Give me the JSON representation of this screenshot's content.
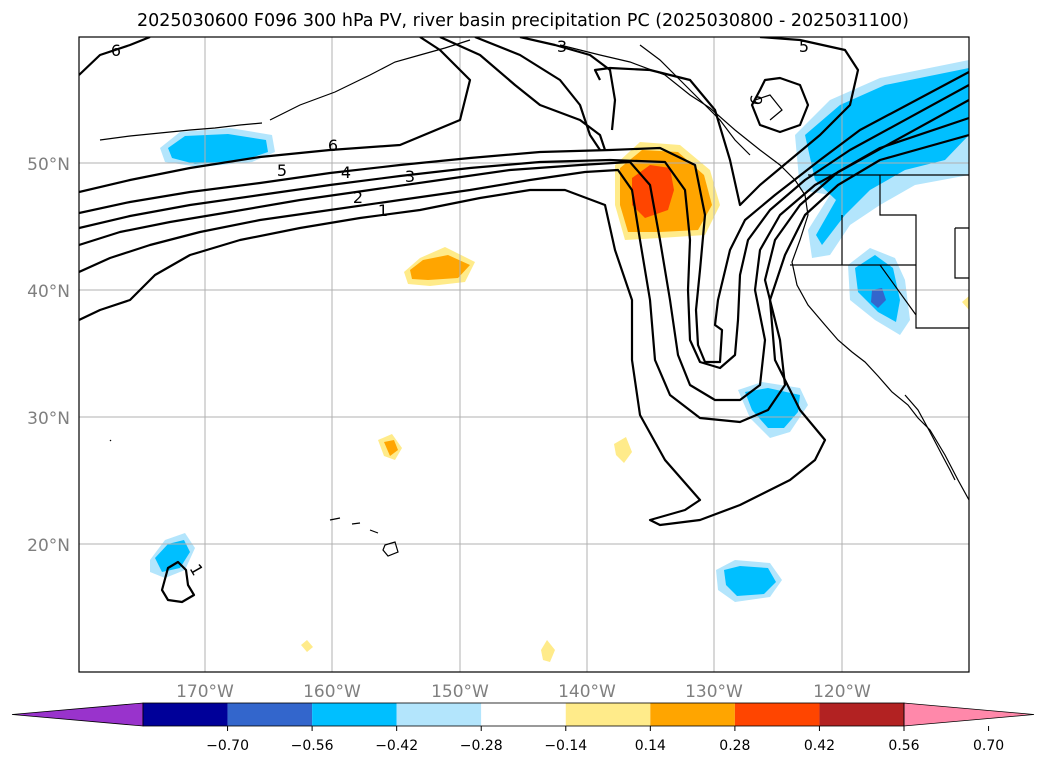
{
  "title": "2025030600 F096 300 hPa PV, river basin precipitation PC (2025030800 - 2025031100)",
  "map": {
    "longitude_labels": [
      "170°W",
      "160°W",
      "150°W",
      "140°W",
      "130°W",
      "120°W"
    ],
    "latitude_labels": [
      "50°N",
      "40°N",
      "30°N",
      "20°N"
    ],
    "extent": {
      "lon_min": -180,
      "lon_max": -110,
      "lat_min": 10,
      "lat_max": 60
    },
    "gridlines": true
  },
  "pv_contour_labels": [
    "6",
    "3",
    "5",
    "6",
    "5",
    "4",
    "3",
    "2",
    "1",
    "6",
    "1"
  ],
  "colorbar": {
    "extend": "both",
    "boundaries": [
      "-0.70",
      "-0.56",
      "-0.42",
      "-0.28",
      "-0.14",
      "0.14",
      "0.28",
      "0.42",
      "0.56",
      "0.70"
    ],
    "colors": [
      "#9933cc",
      "#000099",
      "#3366cc",
      "#00bfff",
      "#b3e5fc",
      "#ffffff",
      "#ffeb8a",
      "#ffa500",
      "#ff4500",
      "#b22222",
      "#ff88aa"
    ]
  }
}
